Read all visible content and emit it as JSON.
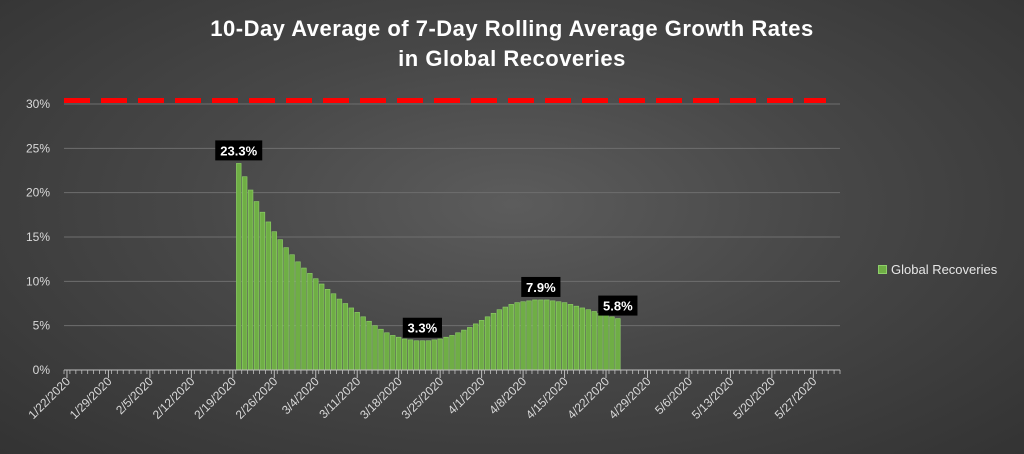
{
  "chart_data": {
    "type": "bar",
    "title_line1": "10-Day Average of 7-Day Rolling Average Growth Rates",
    "title_line2": "in Global Recoveries",
    "series": [
      {
        "name": "Global Recoveries",
        "color": "#8fd06a"
      }
    ],
    "x_tick_labels": [
      "1/22/2020",
      "1/29/2020",
      "2/5/2020",
      "2/12/2020",
      "2/19/2020",
      "2/26/2020",
      "3/4/2020",
      "3/11/2020",
      "3/18/2020",
      "3/25/2020",
      "4/1/2020",
      "4/8/2020",
      "4/15/2020",
      "4/22/2020",
      "4/29/2020",
      "5/6/2020",
      "5/13/2020",
      "5/20/2020",
      "5/27/2020"
    ],
    "x_start": "1/22/2020",
    "x_end": "5/31/2020",
    "ylim": [
      0,
      30
    ],
    "y_ticks": [
      0,
      5,
      10,
      15,
      20,
      25,
      30
    ],
    "y_tick_format": "percent",
    "grid": true,
    "legend_position": "right",
    "threshold": {
      "value": 30.4,
      "color": "#ff0000",
      "style": "dashed"
    },
    "data_labels": [
      {
        "date": "2/20/2020",
        "text": "23.3%"
      },
      {
        "date": "3/22/2020",
        "text": "3.3%"
      },
      {
        "date": "4/11/2020",
        "text": "7.9%"
      },
      {
        "date": "4/24/2020",
        "text": "5.8%"
      }
    ],
    "points": [
      [
        "2/20/2020",
        23.3
      ],
      [
        "2/21/2020",
        21.8
      ],
      [
        "2/22/2020",
        20.3
      ],
      [
        "2/23/2020",
        19.0
      ],
      [
        "2/24/2020",
        17.8
      ],
      [
        "2/25/2020",
        16.7
      ],
      [
        "2/26/2020",
        15.6
      ],
      [
        "2/27/2020",
        14.7
      ],
      [
        "2/28/2020",
        13.8
      ],
      [
        "2/29/2020",
        13.0
      ],
      [
        "3/1/2020",
        12.2
      ],
      [
        "3/2/2020",
        11.5
      ],
      [
        "3/3/2020",
        10.9
      ],
      [
        "3/4/2020",
        10.3
      ],
      [
        "3/5/2020",
        9.7
      ],
      [
        "3/6/2020",
        9.1
      ],
      [
        "3/7/2020",
        8.6
      ],
      [
        "3/8/2020",
        8.0
      ],
      [
        "3/9/2020",
        7.5
      ],
      [
        "3/10/2020",
        7.0
      ],
      [
        "3/11/2020",
        6.5
      ],
      [
        "3/12/2020",
        6.0
      ],
      [
        "3/13/2020",
        5.5
      ],
      [
        "3/14/2020",
        5.0
      ],
      [
        "3/15/2020",
        4.6
      ],
      [
        "3/16/2020",
        4.2
      ],
      [
        "3/17/2020",
        3.9
      ],
      [
        "3/18/2020",
        3.7
      ],
      [
        "3/19/2020",
        3.5
      ],
      [
        "3/20/2020",
        3.4
      ],
      [
        "3/21/2020",
        3.3
      ],
      [
        "3/22/2020",
        3.3
      ],
      [
        "3/23/2020",
        3.3
      ],
      [
        "3/24/2020",
        3.4
      ],
      [
        "3/25/2020",
        3.5
      ],
      [
        "3/26/2020",
        3.7
      ],
      [
        "3/27/2020",
        3.9
      ],
      [
        "3/28/2020",
        4.2
      ],
      [
        "3/29/2020",
        4.5
      ],
      [
        "3/30/2020",
        4.8
      ],
      [
        "3/31/2020",
        5.2
      ],
      [
        "4/1/2020",
        5.6
      ],
      [
        "4/2/2020",
        6.0
      ],
      [
        "4/3/2020",
        6.4
      ],
      [
        "4/4/2020",
        6.8
      ],
      [
        "4/5/2020",
        7.1
      ],
      [
        "4/6/2020",
        7.4
      ],
      [
        "4/7/2020",
        7.6
      ],
      [
        "4/8/2020",
        7.7
      ],
      [
        "4/9/2020",
        7.8
      ],
      [
        "4/10/2020",
        7.9
      ],
      [
        "4/11/2020",
        7.9
      ],
      [
        "4/12/2020",
        7.9
      ],
      [
        "4/13/2020",
        7.8
      ],
      [
        "4/14/2020",
        7.7
      ],
      [
        "4/15/2020",
        7.6
      ],
      [
        "4/16/2020",
        7.4
      ],
      [
        "4/17/2020",
        7.2
      ],
      [
        "4/18/2020",
        7.0
      ],
      [
        "4/19/2020",
        6.8
      ],
      [
        "4/20/2020",
        6.6
      ],
      [
        "4/21/2020",
        6.4
      ],
      [
        "4/22/2020",
        6.2
      ],
      [
        "4/23/2020",
        6.0
      ],
      [
        "4/24/2020",
        5.8
      ]
    ]
  }
}
